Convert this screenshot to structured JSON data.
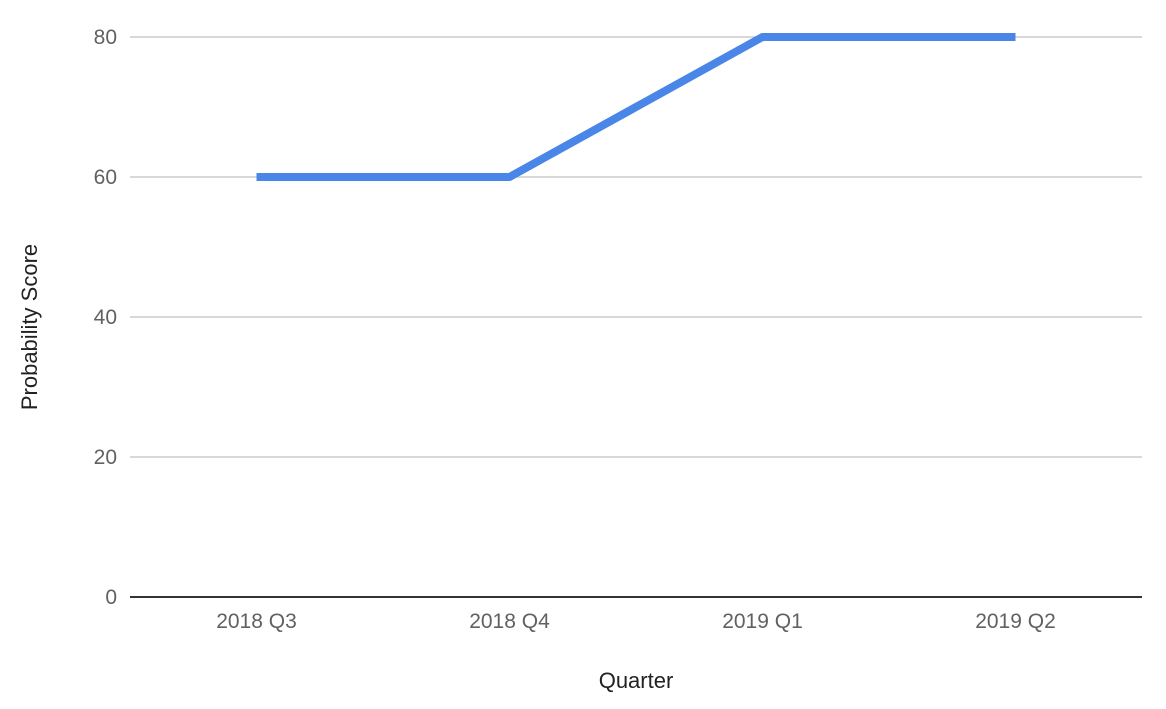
{
  "chart_data": {
    "type": "line",
    "title": "",
    "xlabel": "Quarter",
    "ylabel": "Probability Score",
    "categories": [
      "2018 Q3",
      "2018 Q4",
      "2019 Q1",
      "2019 Q2"
    ],
    "series": [
      {
        "values": [
          60,
          60,
          80,
          80
        ],
        "color": "#4a86e8"
      }
    ],
    "ylim": [
      0,
      80
    ],
    "yticks": [
      "0",
      "20",
      "40",
      "60",
      "80"
    ],
    "grid": true,
    "legend": "none"
  }
}
